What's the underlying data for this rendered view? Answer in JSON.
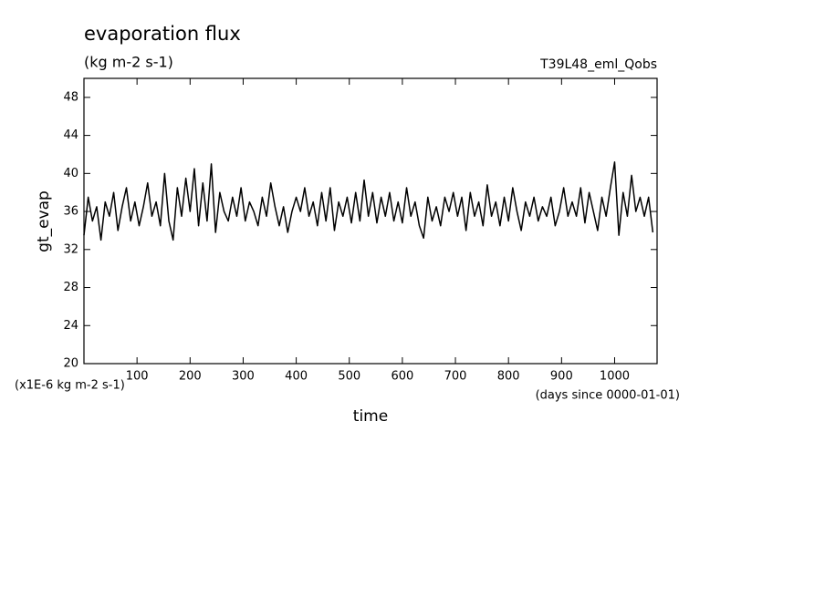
{
  "chart_data": {
    "type": "line",
    "title": "evaporation flux",
    "subtitle": "(kg m-2 s-1)",
    "annotation": "T39L48_eml_Qobs",
    "y_label": "gt_evap",
    "x_label": "time",
    "y_unit_note": "(x1E-6 kg m-2 s-1)",
    "x_unit_note": "(days since 0000-01-01)",
    "xlim": [
      0,
      1080
    ],
    "ylim": [
      20,
      50
    ],
    "xticks": [
      100,
      200,
      300,
      400,
      500,
      600,
      700,
      800,
      900,
      1000
    ],
    "yticks": [
      20,
      24,
      28,
      32,
      36,
      40,
      44,
      48
    ],
    "x": [
      0,
      8,
      16,
      24,
      32,
      40,
      48,
      56,
      64,
      72,
      80,
      88,
      96,
      104,
      112,
      120,
      128,
      136,
      144,
      152,
      160,
      168,
      176,
      184,
      192,
      200,
      208,
      216,
      224,
      232,
      240,
      248,
      256,
      264,
      272,
      280,
      288,
      296,
      304,
      312,
      320,
      328,
      336,
      344,
      352,
      360,
      368,
      376,
      384,
      392,
      400,
      408,
      416,
      424,
      432,
      440,
      448,
      456,
      464,
      472,
      480,
      488,
      496,
      504,
      512,
      520,
      528,
      536,
      544,
      552,
      560,
      568,
      576,
      584,
      592,
      600,
      608,
      616,
      624,
      632,
      640,
      648,
      656,
      664,
      672,
      680,
      688,
      696,
      704,
      712,
      720,
      728,
      736,
      744,
      752,
      760,
      768,
      776,
      784,
      792,
      800,
      808,
      816,
      824,
      832,
      840,
      848,
      856,
      864,
      872,
      880,
      888,
      896,
      904,
      912,
      920,
      928,
      936,
      944,
      952,
      960,
      968,
      976,
      984,
      992,
      1000,
      1008,
      1016,
      1024,
      1032,
      1040,
      1048,
      1056,
      1064,
      1072
    ],
    "series": [
      {
        "color": "#000000",
        "values": [
          33.5,
          37.5,
          35,
          36.5,
          33,
          37,
          35.5,
          38,
          34,
          36.5,
          38.5,
          35,
          37,
          34.5,
          36.5,
          39,
          35.5,
          37,
          34.5,
          40,
          35,
          33,
          38.5,
          35.5,
          39.5,
          36,
          40.5,
          34.5,
          39,
          35,
          41,
          33.8,
          38,
          36,
          35,
          37.5,
          35.5,
          38.5,
          35,
          37,
          36,
          34.5,
          37.5,
          35.5,
          39,
          36.5,
          34.5,
          36.5,
          33.8,
          36,
          37.5,
          36,
          38.5,
          35.5,
          37,
          34.5,
          38,
          35,
          38.5,
          34,
          37,
          35.5,
          37.5,
          34.8,
          38,
          35,
          39.3,
          35.5,
          38,
          34.8,
          37.5,
          35.5,
          38,
          35,
          37,
          34.8,
          38.5,
          35.5,
          37,
          34.5,
          33.2,
          37.5,
          35,
          36.5,
          34.5,
          37.5,
          36,
          38,
          35.5,
          37.5,
          34,
          38,
          35.5,
          37,
          34.5,
          38.8,
          35.5,
          37,
          34.5,
          37.5,
          35,
          38.5,
          36,
          34,
          37,
          35.5,
          37.5,
          35,
          36.5,
          35.5,
          37.5,
          34.5,
          36,
          38.5,
          35.5,
          37,
          35.5,
          38.5,
          34.8,
          38,
          36,
          34,
          37.5,
          35.5,
          38.5,
          41.2,
          33.5,
          38,
          35.5,
          39.8,
          36,
          37.5,
          35.5,
          37.5,
          33.8
        ]
      }
    ]
  }
}
